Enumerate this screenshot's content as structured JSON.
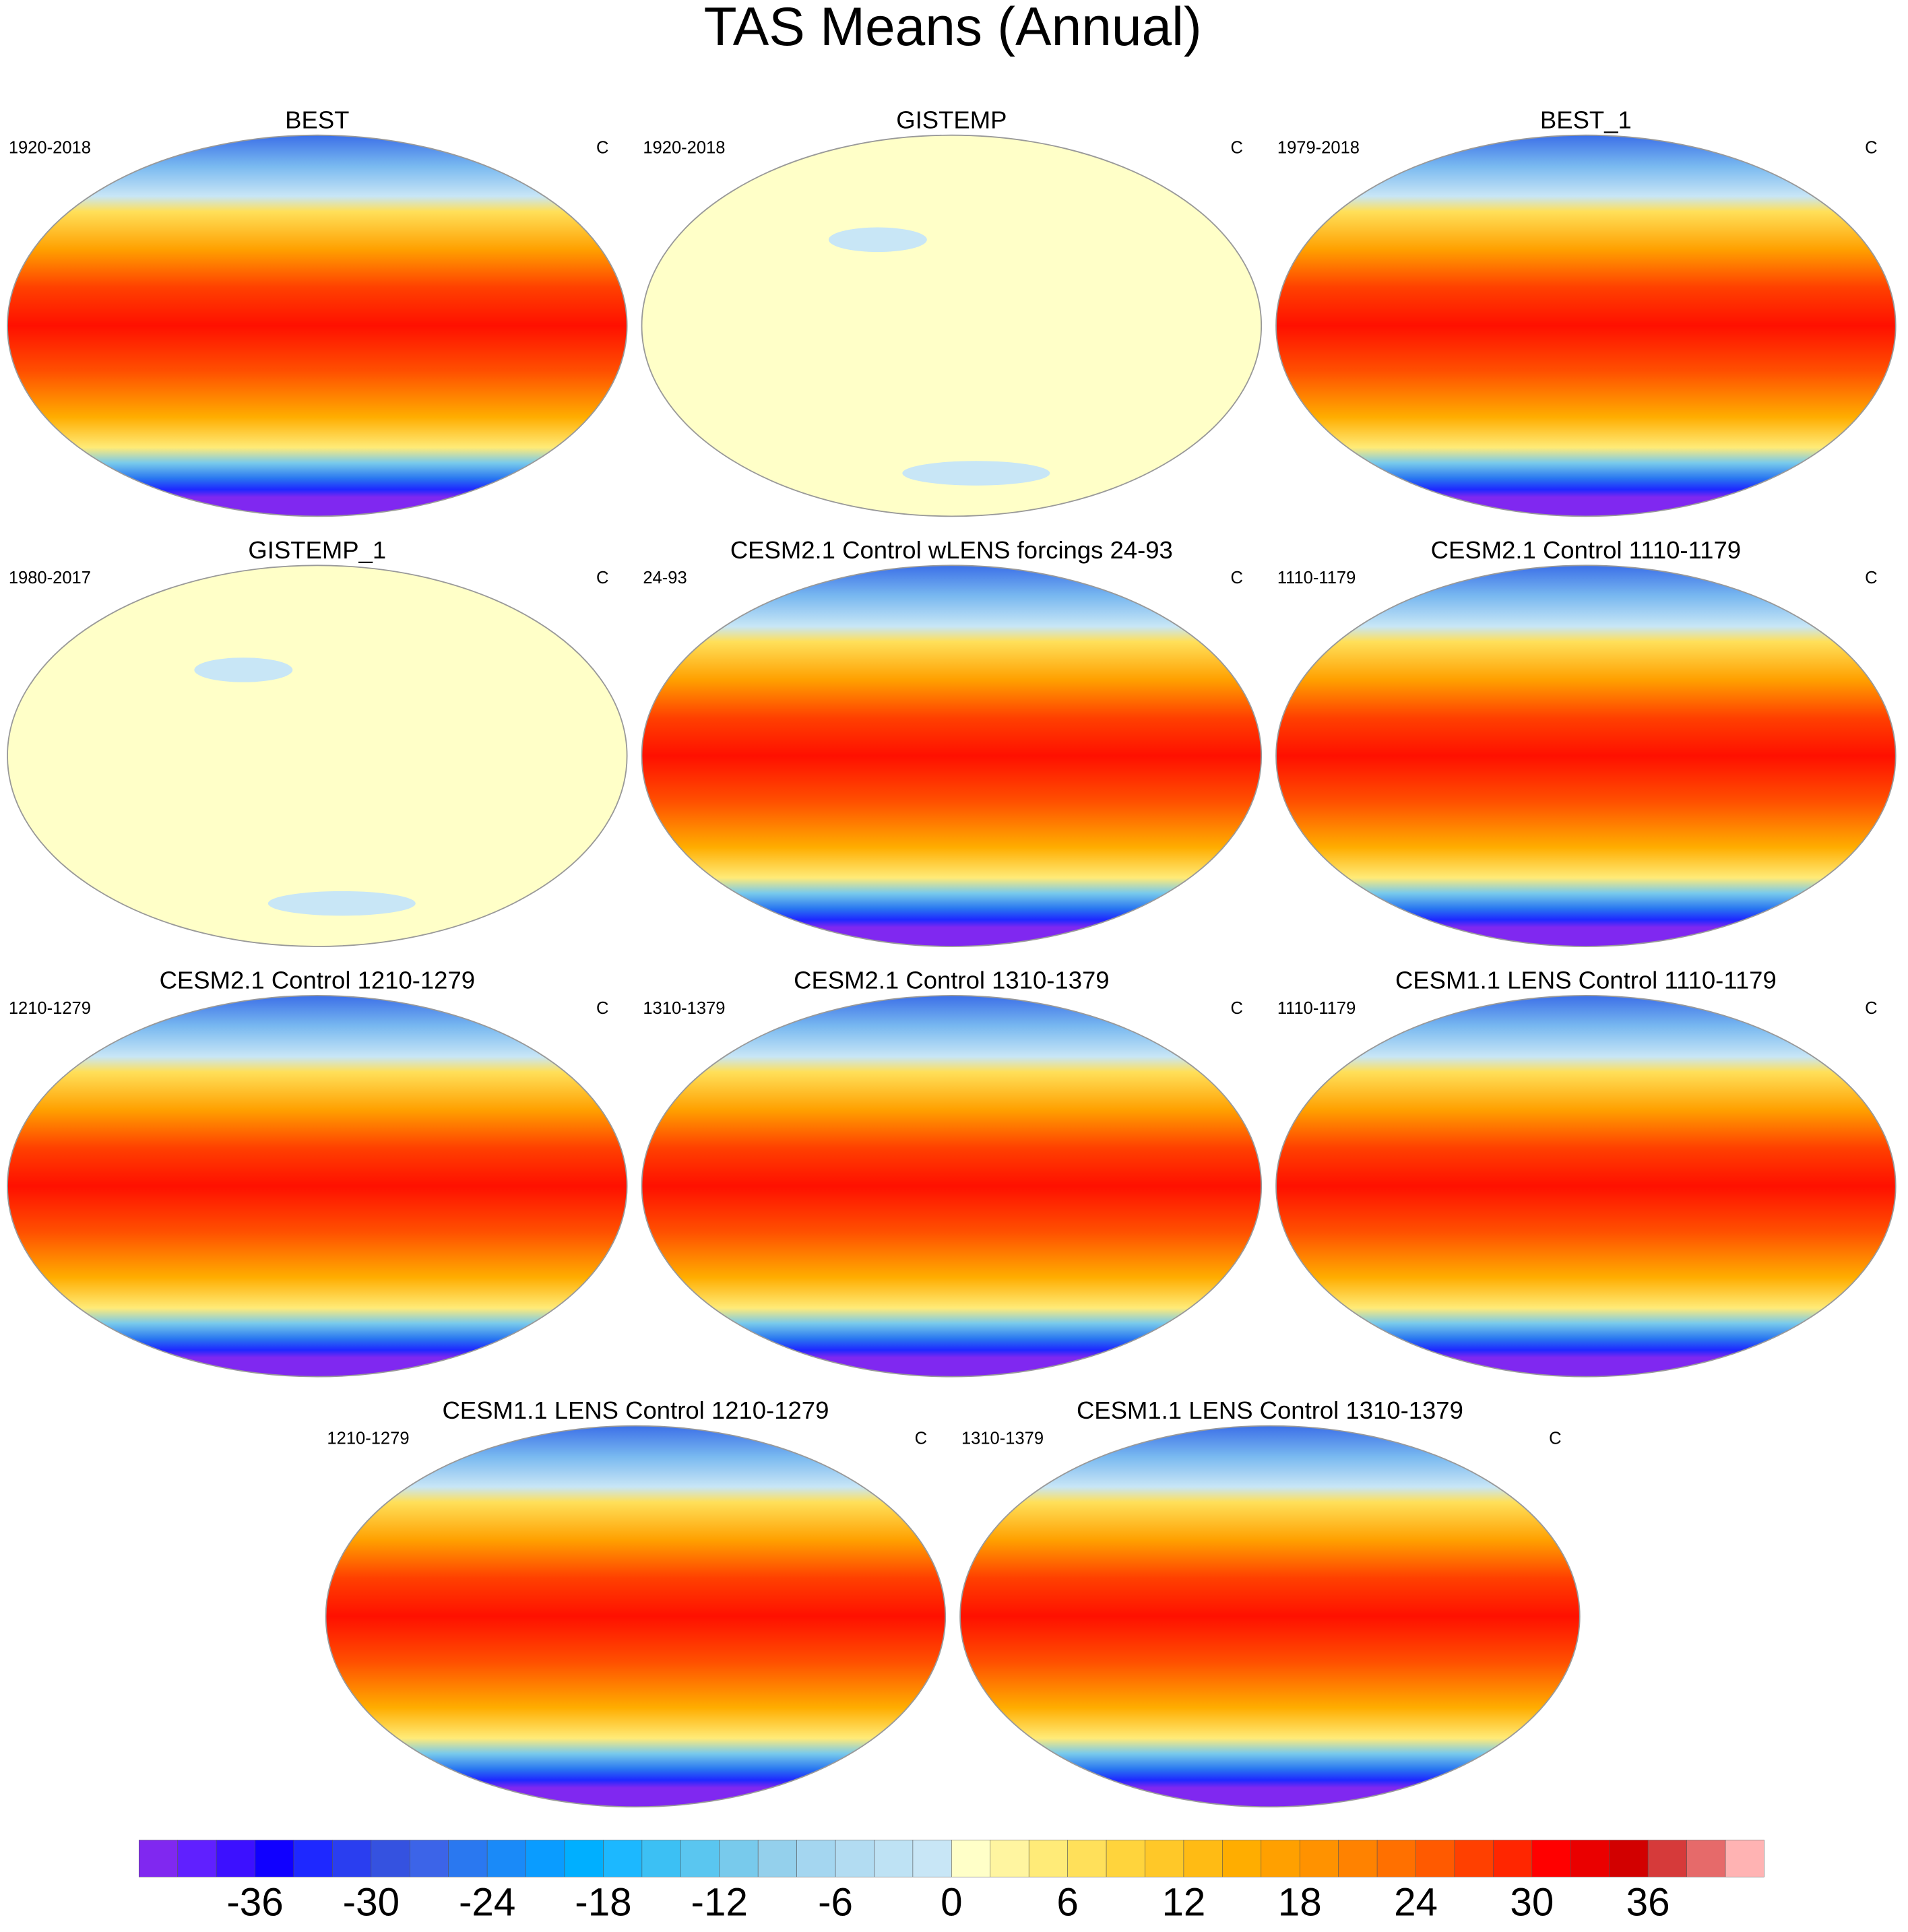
{
  "title": "TAS Means (Annual)",
  "panels": [
    {
      "title": "BEST",
      "period": "1920-2018",
      "units": "C"
    },
    {
      "title": "GISTEMP",
      "period": "1920-2018",
      "units": "C"
    },
    {
      "title": "BEST_1",
      "period": "1979-2018",
      "units": "C"
    },
    {
      "title": "GISTEMP_1",
      "period": "1980-2017",
      "units": "C"
    },
    {
      "title": "CESM2.1 Control wLENS forcings 24-93",
      "period": "24-93",
      "units": "C"
    },
    {
      "title": "CESM2.1 Control 1110-1179",
      "period": "1110-1179",
      "units": "C"
    },
    {
      "title": "CESM2.1 Control 1210-1279",
      "period": "1210-1279",
      "units": "C"
    },
    {
      "title": "CESM2.1 Control 1310-1379",
      "period": "1310-1379",
      "units": "C"
    },
    {
      "title": "CESM1.1 LENS Control 1110-1179",
      "period": "1110-1179",
      "units": "C"
    },
    {
      "title": "CESM1.1 LENS Control 1210-1279",
      "period": "1210-1279",
      "units": "C"
    },
    {
      "title": "CESM1.1 LENS Control 1310-1379",
      "period": "1310-1379",
      "units": "C"
    }
  ],
  "colorbar": {
    "levels": [
      -40,
      -38,
      -36,
      -34,
      -32,
      -30,
      -28,
      -26,
      -24,
      -22,
      -20,
      -18,
      -16,
      -14,
      -12,
      -10,
      -8,
      -6,
      -4,
      -2,
      0,
      2,
      4,
      6,
      8,
      10,
      12,
      14,
      16,
      18,
      20,
      22,
      24,
      26,
      28,
      30,
      32,
      34,
      36,
      38,
      40
    ],
    "colors": [
      "#8028f0",
      "#6020ff",
      "#3c10ff",
      "#1000ff",
      "#1e28ff",
      "#2a3ef0",
      "#3552e0",
      "#3c64e8",
      "#2a78f0",
      "#1a8af8",
      "#0a9cff",
      "#00afff",
      "#1cb8ff",
      "#3cc0f4",
      "#5ac6f0",
      "#78caec",
      "#94d0ec",
      "#a4d6f0",
      "#b2dcf2",
      "#bee2f4",
      "#c8e6f6",
      "#ffffc8",
      "#fff5a0",
      "#ffeb78",
      "#ffe05a",
      "#ffd43c",
      "#ffc828",
      "#ffbb14",
      "#ffad00",
      "#ffa000",
      "#ff9200",
      "#ff8200",
      "#ff7000",
      "#ff5a00",
      "#ff4000",
      "#ff2600",
      "#ff0000",
      "#ea0000",
      "#d20000",
      "#d63a3a",
      "#e66a6a",
      "#ffb3b3"
    ],
    "ticks": [
      -36,
      -30,
      -24,
      -18,
      -12,
      -6,
      0,
      6,
      12,
      18,
      24,
      30,
      36
    ]
  }
}
